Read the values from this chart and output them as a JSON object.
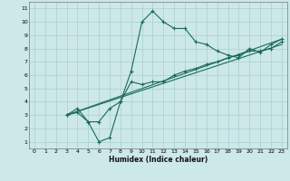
{
  "xlabel": "Humidex (Indice chaleur)",
  "bg_color": "#cce8e8",
  "grid_color": "#aacfcf",
  "line_color": "#1a6b5a",
  "xlim": [
    -0.5,
    23.5
  ],
  "ylim": [
    0.5,
    11.5
  ],
  "xticks": [
    0,
    1,
    2,
    3,
    4,
    5,
    6,
    7,
    8,
    9,
    10,
    11,
    12,
    13,
    14,
    15,
    16,
    17,
    18,
    19,
    20,
    21,
    22,
    23
  ],
  "yticks": [
    1,
    2,
    3,
    4,
    5,
    6,
    7,
    8,
    9,
    10,
    11
  ],
  "curve1_x": [
    3,
    4,
    5,
    6,
    7,
    8,
    9,
    10,
    11,
    12,
    13,
    14,
    15,
    16,
    17,
    18,
    19,
    20,
    21,
    22,
    23
  ],
  "curve1_y": [
    3.0,
    3.2,
    2.5,
    1.0,
    1.3,
    4.0,
    6.3,
    10.0,
    10.8,
    10.0,
    9.5,
    9.5,
    8.5,
    8.3,
    7.8,
    7.5,
    7.3,
    8.0,
    7.7,
    8.3,
    8.7
  ],
  "curve2_x": [
    3,
    4,
    5,
    6,
    7,
    8,
    9,
    10,
    11,
    12,
    13,
    14,
    15,
    16,
    17,
    18,
    19,
    20,
    21,
    22,
    23
  ],
  "curve2_y": [
    3.0,
    3.5,
    2.5,
    2.5,
    3.5,
    4.0,
    5.5,
    5.3,
    5.5,
    5.5,
    6.0,
    6.3,
    6.5,
    6.8,
    7.0,
    7.3,
    7.5,
    7.8,
    7.8,
    8.0,
    8.5
  ],
  "line1_x": [
    3,
    23
  ],
  "line1_y": [
    3.0,
    8.7
  ],
  "line2_x": [
    3,
    23
  ],
  "line2_y": [
    3.0,
    8.3
  ]
}
